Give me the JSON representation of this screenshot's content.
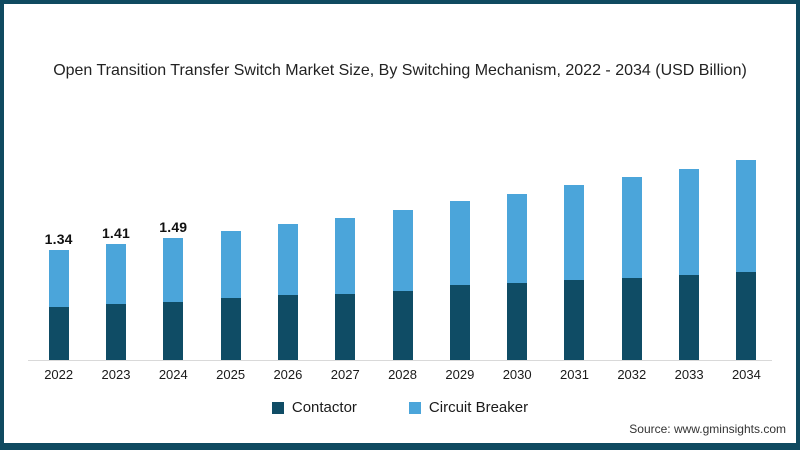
{
  "title": "Open Transition Transfer Switch Market Size, By Switching Mechanism, 2022 - 2034 (USD Billion)",
  "source": "Source: www.gminsights.com",
  "legend": [
    {
      "label": "Contactor",
      "color": "#0f4c65"
    },
    {
      "label": "Circuit Breaker",
      "color": "#4ba5da"
    }
  ],
  "colors": {
    "frame_border": "#0f4a60",
    "background": "#ffffff",
    "axis_line": "#d9d9d9",
    "contactor": "#0f4c65",
    "circuit_breaker": "#4ba5da"
  },
  "chart_data": {
    "type": "bar",
    "stacked": true,
    "title": "Open Transition Transfer Switch Market Size, By Switching Mechanism, 2022 - 2034 (USD Billion)",
    "categories": [
      "2022",
      "2023",
      "2024",
      "2025",
      "2026",
      "2027",
      "2028",
      "2029",
      "2030",
      "2031",
      "2032",
      "2033",
      "2034"
    ],
    "series": [
      {
        "name": "Contactor",
        "color": "#0f4c65",
        "values": [
          0.65,
          0.68,
          0.71,
          0.76,
          0.79,
          0.81,
          0.84,
          0.91,
          0.94,
          0.97,
          1.0,
          1.04,
          1.07
        ]
      },
      {
        "name": "Circuit Breaker",
        "color": "#4ba5da",
        "values": [
          0.69,
          0.73,
          0.78,
          0.82,
          0.87,
          0.93,
          0.99,
          1.02,
          1.09,
          1.16,
          1.23,
          1.29,
          1.37
        ]
      }
    ],
    "totals": [
      1.34,
      1.41,
      1.49,
      1.58,
      1.66,
      1.74,
      1.83,
      1.93,
      2.03,
      2.13,
      2.23,
      2.33,
      2.44
    ],
    "bar_labels": [
      "1.34",
      "1.41",
      "1.49",
      null,
      null,
      null,
      null,
      null,
      null,
      null,
      null,
      null,
      null
    ],
    "xlabel": "",
    "ylabel": "USD Billion",
    "ylim": [
      0,
      2.75
    ],
    "gridlines": false,
    "legend_position": "bottom"
  }
}
